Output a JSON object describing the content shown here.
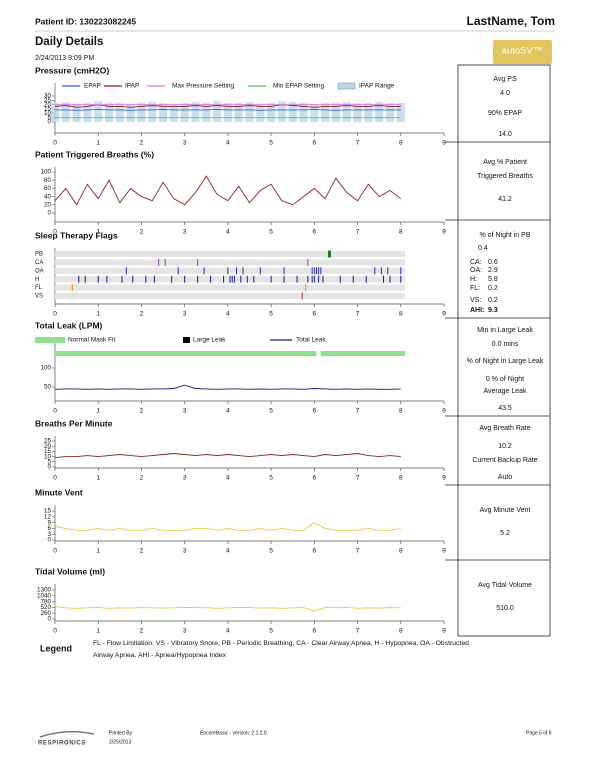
{
  "header": {
    "patient_id": "Patient ID: 130223082245",
    "name": "LastName, Tom",
    "title": "Daily Details",
    "date": "2/24/2013 9:09 PM",
    "badge": "autoSV™"
  },
  "chart_data": [
    {
      "type": "line",
      "title": "Pressure (cmH2O)",
      "xlim": [
        0,
        9
      ],
      "xticks": [
        0,
        1,
        2,
        3,
        4,
        5,
        6,
        7,
        8,
        9
      ],
      "ylim": [
        0,
        30
      ],
      "yticks": [
        0,
        5,
        10,
        15,
        20,
        25,
        30
      ],
      "x": [
        0,
        0.25,
        0.5,
        0.75,
        1,
        1.25,
        1.5,
        1.75,
        2,
        2.25,
        2.5,
        2.75,
        3,
        3.25,
        3.5,
        3.75,
        4,
        4.25,
        4.5,
        4.75,
        5,
        5.25,
        5.5,
        5.75,
        6,
        6.25,
        6.5,
        6.75,
        7,
        7.25,
        7.5,
        7.75,
        8
      ],
      "series": [
        {
          "name": "EPAP",
          "color": "#3a5fcd",
          "values": [
            14,
            14,
            13.5,
            14,
            14.5,
            14,
            14,
            13.5,
            14,
            14,
            14.5,
            14,
            14,
            14,
            14,
            14.5,
            14,
            14,
            14,
            13.5,
            14,
            14,
            14,
            14,
            14.5,
            14,
            13.5,
            14,
            14,
            14,
            14,
            14,
            14
          ]
        },
        {
          "name": "IPAP",
          "color": "#8b2020",
          "values": [
            18,
            19,
            17,
            18,
            20,
            18,
            18,
            17,
            18,
            19,
            18,
            18,
            18,
            19,
            18,
            19,
            18,
            18,
            19,
            18,
            18,
            20,
            19,
            18,
            17,
            18,
            18,
            19,
            18,
            18,
            19,
            18,
            18
          ]
        },
        {
          "name": "Max Pressure Setting",
          "color": "#e070e0",
          "level": 20
        },
        {
          "name": "Min EPAP Setting",
          "color": "#5cbf5c",
          "level": 5
        },
        {
          "name": "IPAP Range",
          "color": "#b9d7ec",
          "kind": "range",
          "values": [
            22,
            23,
            21,
            22,
            24,
            22,
            22,
            21,
            22,
            23,
            22,
            21,
            22,
            23,
            22,
            24,
            22,
            22,
            23,
            21,
            22,
            24,
            23,
            22,
            21,
            22,
            22,
            23,
            22,
            22,
            23,
            22,
            22
          ]
        }
      ]
    },
    {
      "type": "line",
      "title": "Patient Triggered Breaths (%)",
      "xlim": [
        0,
        9
      ],
      "xticks": [
        0,
        1,
        2,
        3,
        4,
        5,
        6,
        7,
        8,
        9
      ],
      "ylim": [
        0,
        100
      ],
      "yticks": [
        0,
        20,
        40,
        60,
        80,
        100
      ],
      "x": [
        0,
        0.25,
        0.5,
        0.75,
        1,
        1.25,
        1.5,
        1.75,
        2,
        2.25,
        2.5,
        2.75,
        3,
        3.25,
        3.5,
        3.75,
        4,
        4.25,
        4.5,
        4.75,
        5,
        5.25,
        5.5,
        5.75,
        6,
        6.25,
        6.5,
        6.75,
        7,
        7.25,
        7.5,
        7.75,
        8
      ],
      "series": [
        {
          "name": "Patient Triggered Breaths",
          "color": "#8b2020",
          "values": [
            30,
            60,
            20,
            70,
            35,
            80,
            25,
            60,
            40,
            30,
            75,
            35,
            20,
            50,
            90,
            45,
            30,
            65,
            25,
            55,
            70,
            30,
            20,
            40,
            60,
            35,
            85,
            50,
            30,
            70,
            40,
            55,
            35
          ]
        }
      ]
    },
    {
      "type": "events",
      "title": "Sleep Therapy Flags",
      "xlim": [
        0,
        9
      ],
      "xticks": [
        0,
        1,
        2,
        3,
        4,
        5,
        6,
        7,
        8,
        9
      ],
      "series": [
        {
          "name": "PB",
          "color": "#1a7a1a",
          "x": [
            6.35
          ]
        },
        {
          "name": "CA",
          "color": "#9a3fb0",
          "x": [
            2.4,
            2.55,
            3.3,
            5.85
          ]
        },
        {
          "name": "OA",
          "color": "#2b2bb0",
          "x": [
            1.65,
            2.85,
            3.45,
            4.0,
            4.2,
            4.35,
            4.75,
            5.3,
            5.95,
            6.0,
            6.05,
            6.1,
            6.15,
            7.4,
            7.55,
            7.7,
            8.0
          ]
        },
        {
          "name": "H",
          "color": "#1f1f90",
          "x": [
            0.55,
            0.7,
            1.0,
            1.2,
            1.55,
            1.8,
            2.1,
            2.3,
            2.7,
            3.0,
            3.3,
            3.6,
            3.9,
            4.05,
            4.1,
            4.15,
            4.3,
            4.45,
            4.6,
            5.0,
            5.3,
            5.6,
            5.85,
            5.95,
            6.0,
            6.1,
            6.2,
            6.6,
            6.9,
            7.2,
            7.6,
            7.75,
            8.0
          ]
        },
        {
          "name": "FL",
          "color": "#e08a20",
          "x": [
            0.4,
            5.8
          ]
        },
        {
          "name": "VS",
          "color": "#c03030",
          "x": [
            5.72
          ]
        }
      ]
    },
    {
      "type": "line",
      "title": "Total Leak (LPM)",
      "xlim": [
        0,
        9
      ],
      "xticks": [
        0,
        1,
        2,
        3,
        4,
        5,
        6,
        7,
        8,
        9
      ],
      "ylim": [
        20,
        120
      ],
      "yticks": [
        50,
        100
      ],
      "x": [
        0,
        0.25,
        0.5,
        0.75,
        1,
        1.25,
        1.5,
        1.75,
        2,
        2.25,
        2.5,
        2.75,
        3,
        3.25,
        3.5,
        3.75,
        4,
        4.25,
        4.5,
        4.75,
        5,
        5.25,
        5.5,
        5.75,
        6,
        6.25,
        6.5,
        6.75,
        7,
        7.25,
        7.5,
        7.75,
        8
      ],
      "bands": [
        {
          "name": "Normal Mask Fit",
          "color": "#8fe08f",
          "segments": [
            {
              "start": 0,
              "end": 6.05
            },
            {
              "start": 6.15,
              "end": 8.1
            }
          ]
        },
        {
          "name": "Large Leak",
          "color": "#000000",
          "segments": []
        }
      ],
      "series": [
        {
          "name": "Total Leak",
          "color": "#1a1a6e",
          "values": [
            44,
            45,
            45,
            44,
            45,
            44,
            45,
            45,
            44,
            45,
            45,
            46,
            55,
            46,
            45,
            44,
            45,
            45,
            44,
            45,
            44,
            45,
            45,
            44,
            46,
            45,
            44,
            45,
            44,
            45,
            44,
            44,
            45
          ]
        }
      ]
    },
    {
      "type": "line",
      "title": "Breaths Per Minute",
      "xlim": [
        0,
        9
      ],
      "xticks": [
        0,
        1,
        2,
        3,
        4,
        5,
        6,
        7,
        8,
        9
      ],
      "ylim": [
        0,
        25
      ],
      "yticks": [
        0,
        5,
        10,
        15,
        20,
        25
      ],
      "x": [
        0,
        0.25,
        0.5,
        0.75,
        1,
        1.25,
        1.5,
        1.75,
        2,
        2.25,
        2.5,
        2.75,
        3,
        3.25,
        3.5,
        3.75,
        4,
        4.25,
        4.5,
        4.75,
        5,
        5.25,
        5.5,
        5.75,
        6,
        6.25,
        6.5,
        6.75,
        7,
        7.25,
        7.5,
        7.75,
        8
      ],
      "series": [
        {
          "name": "Breaths Per Minute",
          "color": "#8b2020",
          "values": [
            9,
            10,
            10,
            11,
            10,
            11,
            12,
            11,
            10,
            11,
            12,
            13,
            12,
            11,
            12,
            11,
            12,
            11,
            10,
            11,
            12,
            11,
            12,
            11,
            10,
            12,
            11,
            12,
            13,
            11,
            10,
            11,
            10
          ]
        }
      ]
    },
    {
      "type": "line",
      "title": "Minute Vent",
      "xlim": [
        0,
        9
      ],
      "xticks": [
        0,
        1,
        2,
        3,
        4,
        5,
        6,
        7,
        8,
        9
      ],
      "ylim": [
        0,
        15
      ],
      "yticks": [
        0,
        3,
        6,
        9,
        12,
        15
      ],
      "x": [
        0,
        0.25,
        0.5,
        0.75,
        1,
        1.25,
        1.5,
        1.75,
        2,
        2.25,
        2.5,
        2.75,
        3,
        3.25,
        3.5,
        3.75,
        4,
        4.25,
        4.5,
        4.75,
        5,
        5.25,
        5.5,
        5.75,
        6,
        6.25,
        6.5,
        6.75,
        7,
        7.25,
        7.5,
        7.75,
        8
      ],
      "series": [
        {
          "name": "Minute Vent",
          "color": "#e8c840",
          "values": [
            7,
            6,
            5,
            5,
            6,
            5,
            6,
            5,
            5,
            6,
            5,
            5,
            5,
            6,
            6,
            5,
            6,
            5,
            5,
            6,
            5,
            6,
            5,
            5,
            9,
            6,
            5,
            5,
            5,
            6,
            5,
            5,
            6
          ]
        }
      ]
    },
    {
      "type": "line",
      "title": "Tidal Volume (ml)",
      "xlim": [
        0,
        9
      ],
      "xticks": [
        0,
        1,
        2,
        3,
        4,
        5,
        6,
        7,
        8,
        9
      ],
      "ylim": [
        0,
        1300
      ],
      "yticks": [
        0,
        260,
        520,
        780,
        1040,
        1300
      ],
      "x": [
        0,
        0.25,
        0.5,
        0.75,
        1,
        1.25,
        1.5,
        1.75,
        2,
        2.25,
        2.5,
        2.75,
        3,
        3.25,
        3.5,
        3.75,
        4,
        4.25,
        4.5,
        4.75,
        5,
        5.25,
        5.5,
        5.75,
        6,
        6.25,
        6.5,
        6.75,
        7,
        7.25,
        7.5,
        7.75,
        8
      ],
      "series": [
        {
          "name": "Tidal Volume",
          "color": "#e8c840",
          "values": [
            560,
            500,
            480,
            500,
            520,
            480,
            500,
            490,
            510,
            500,
            490,
            500,
            520,
            510,
            500,
            480,
            500,
            520,
            510,
            490,
            500,
            480,
            500,
            510,
            350,
            520,
            500,
            520,
            480,
            500,
            490,
            510,
            500
          ]
        }
      ]
    }
  ],
  "panels": [
    {
      "items": [
        "Avg PS",
        "4.0",
        "90% EPAP",
        "14.0"
      ]
    },
    {
      "items": [
        "Avg % Patient",
        "Triggered Breaths",
        "41.2"
      ]
    },
    {
      "items": [
        "% of Night in PB",
        "0.4",
        {
          "label": "CA:",
          "value": "0.6"
        },
        {
          "label": "OA:",
          "value": "2.9"
        },
        {
          "label": "H:",
          "value": "5.8"
        },
        {
          "label": "FL:",
          "value": "0.2"
        },
        {
          "label": "VS:",
          "value": "0.2"
        },
        {
          "label": "AHI:",
          "value": "9.3"
        }
      ]
    },
    {
      "items": [
        "Min in Large Leak",
        "0.0 mins",
        "% of Night in Large Leak",
        "0 % of Night",
        "Average Leak",
        "43.5"
      ]
    },
    {
      "items": [
        "Avg Breath Rate",
        "10.2",
        "Current Backup Rate",
        "Auto"
      ]
    },
    {
      "items": [
        "Avg Minute Vent",
        "5.2"
      ]
    },
    {
      "items": [
        "Avg Tidal Volume",
        "510.0"
      ]
    }
  ],
  "legend": {
    "title": "Legend",
    "lines": [
      "FL - Flow Limitation, VS - Vibratory Snore, PB - Periodic Breathing, CA - Clear Airway Apnea, H - Hypopnea, OA - Obstructed",
      "Airway Apnea, AHI - Apnea/Hypopnea Index"
    ]
  },
  "footer": {
    "logo": "RESPIRONICS",
    "printed_label": "Printed By:",
    "printed_date": "2/25/2013",
    "version": "EncoreBasic - version: 2.1.2.0",
    "page": "Page 5 of 6"
  }
}
